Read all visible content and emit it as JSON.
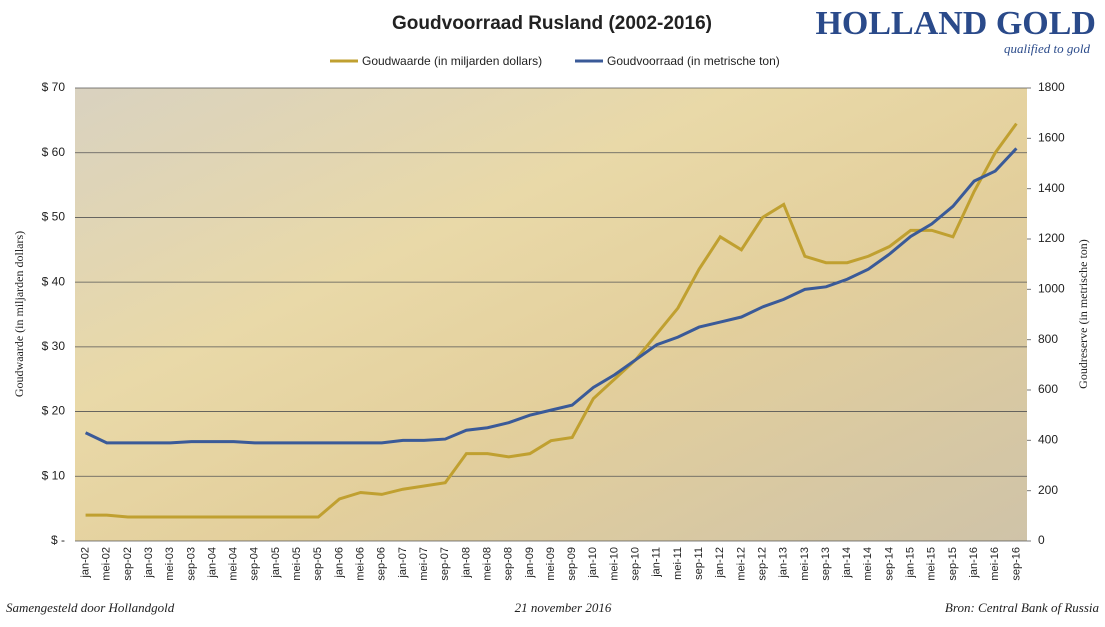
{
  "chart_data": {
    "type": "line",
    "title": "Goudvoorraad Rusland (2002-2016)",
    "y_label": "Goudwaarde  (in miljarden dollars)",
    "y2_label": "Goudreserve  (in metrische ton)",
    "categories": [
      "jan-02",
      "mei-02",
      "sep-02",
      "jan-03",
      "mei-03",
      "sep-03",
      "jan-04",
      "mei-04",
      "sep-04",
      "jan-05",
      "mei-05",
      "sep-05",
      "jan-06",
      "mei-06",
      "sep-06",
      "jan-07",
      "mei-07",
      "sep-07",
      "jan-08",
      "mei-08",
      "sep-08",
      "jan-09",
      "mei-09",
      "sep-09",
      "jan-10",
      "mei-10",
      "sep-10",
      "jan-11",
      "mei-11",
      "sep-11",
      "jan-12",
      "mei-12",
      "sep-12",
      "jan-13",
      "mei-13",
      "sep-13",
      "jan-14",
      "mei-14",
      "sep-14",
      "jan-15",
      "mei-15",
      "sep-15",
      "jan-16",
      "mei-16",
      "sep-16"
    ],
    "series": [
      {
        "name": "Goudwaarde (in miljarden dollars)",
        "color": "#c0a030",
        "axis": "y",
        "values": [
          4.0,
          4.0,
          3.7,
          3.7,
          3.7,
          3.7,
          3.7,
          3.7,
          3.7,
          3.7,
          3.7,
          3.7,
          6.5,
          7.5,
          7.2,
          8.0,
          8.5,
          9.0,
          13.5,
          13.5,
          13.0,
          13.5,
          15.5,
          16.0,
          22.0,
          25.0,
          28.0,
          32.0,
          36.0,
          42.0,
          47.0,
          45.0,
          50.0,
          52.0,
          44.0,
          43.0,
          43.0,
          44.0,
          45.5,
          48.0,
          48.0,
          47.0,
          54.0,
          60.0,
          64.5
        ]
      },
      {
        "name": "Goudvoorraad (in metrische ton)",
        "color": "#3a5a98",
        "axis": "y2",
        "values": [
          430,
          390,
          390,
          390,
          390,
          395,
          395,
          395,
          390,
          390,
          390,
          390,
          390,
          390,
          390,
          400,
          400,
          405,
          440,
          450,
          470,
          500,
          520,
          540,
          610,
          660,
          720,
          780,
          810,
          850,
          870,
          890,
          930,
          960,
          1000,
          1010,
          1040,
          1080,
          1140,
          1210,
          1260,
          1330,
          1430,
          1470,
          1560
        ]
      }
    ],
    "ylim": [
      0,
      70
    ],
    "yticks": [
      {
        "value": 0,
        "label": "$ -"
      },
      {
        "value": 10,
        "label": "$ 10"
      },
      {
        "value": 20,
        "label": "$ 20"
      },
      {
        "value": 30,
        "label": "$ 30"
      },
      {
        "value": 40,
        "label": "$ 40"
      },
      {
        "value": 50,
        "label": "$ 50"
      },
      {
        "value": 60,
        "label": "$ 60"
      },
      {
        "value": 70,
        "label": "$ 70"
      }
    ],
    "y2lim": [
      0,
      1800
    ],
    "y2ticks": [
      0,
      200,
      400,
      600,
      800,
      1000,
      1200,
      1400,
      1600,
      1800
    ],
    "grid": true,
    "legend": "top"
  },
  "logo": {
    "name": "HOLLAND GOLD",
    "tagline": "qualified to gold"
  },
  "footer": {
    "left": "Samengesteld door Hollandgold",
    "center": "21 november 2016",
    "right": "Bron: Central Bank of Russia"
  }
}
